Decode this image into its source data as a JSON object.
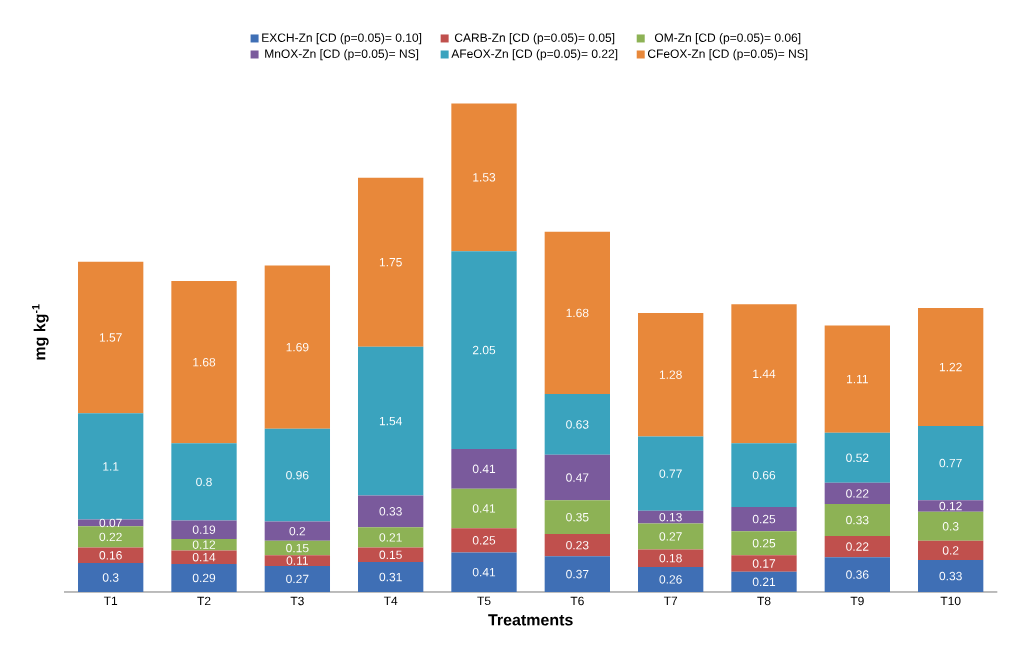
{
  "chart_data": {
    "type": "bar",
    "stacked": true,
    "data_labels": true,
    "legend": "top",
    "xlabel": "Treatments",
    "ylabel": "mg kg$^{-1}$",
    "categories": [
      "T1",
      "T2",
      "T3",
      "T4",
      "T5",
      "T6",
      "T7",
      "T8",
      "T9",
      "T10"
    ],
    "series": [
      {
        "name": "EXCH-Zn [CD (p=0.05)= 0.10]",
        "color": "#3f6fb5",
        "values": [
          0.3,
          0.29,
          0.27,
          0.31,
          0.41,
          0.37,
          0.26,
          0.21,
          0.36,
          0.33
        ]
      },
      {
        "name": "CARB-Zn [CD (p=0.05)= 0.05]",
        "color": "#c0504d",
        "values": [
          0.16,
          0.14,
          0.11,
          0.15,
          0.25,
          0.23,
          0.18,
          0.17,
          0.22,
          0.2
        ]
      },
      {
        "name": "OM-Zn [CD (p=0.05)= 0.06]",
        "color": "#8db255",
        "values": [
          0.22,
          0.12,
          0.15,
          0.21,
          0.41,
          0.35,
          0.27,
          0.25,
          0.33,
          0.3
        ]
      },
      {
        "name": "MnOX-Zn [CD (p=0.05)= NS]",
        "color": "#7a5a9c",
        "values": [
          0.07,
          0.19,
          0.2,
          0.33,
          0.41,
          0.47,
          0.13,
          0.25,
          0.22,
          0.12
        ]
      },
      {
        "name": "AFeOX-Zn [CD (p=0.05)= 0.22]",
        "color": "#3aa3be",
        "values": [
          1.1,
          0.8,
          0.96,
          1.54,
          2.05,
          0.63,
          0.77,
          0.66,
          0.52,
          0.77
        ]
      },
      {
        "name": "CFeOX-Zn [CD (p=0.05)= NS]",
        "color": "#e8883a",
        "values": [
          1.57,
          1.68,
          1.69,
          1.75,
          1.53,
          1.68,
          1.28,
          1.44,
          1.11,
          1.22
        ]
      }
    ]
  }
}
